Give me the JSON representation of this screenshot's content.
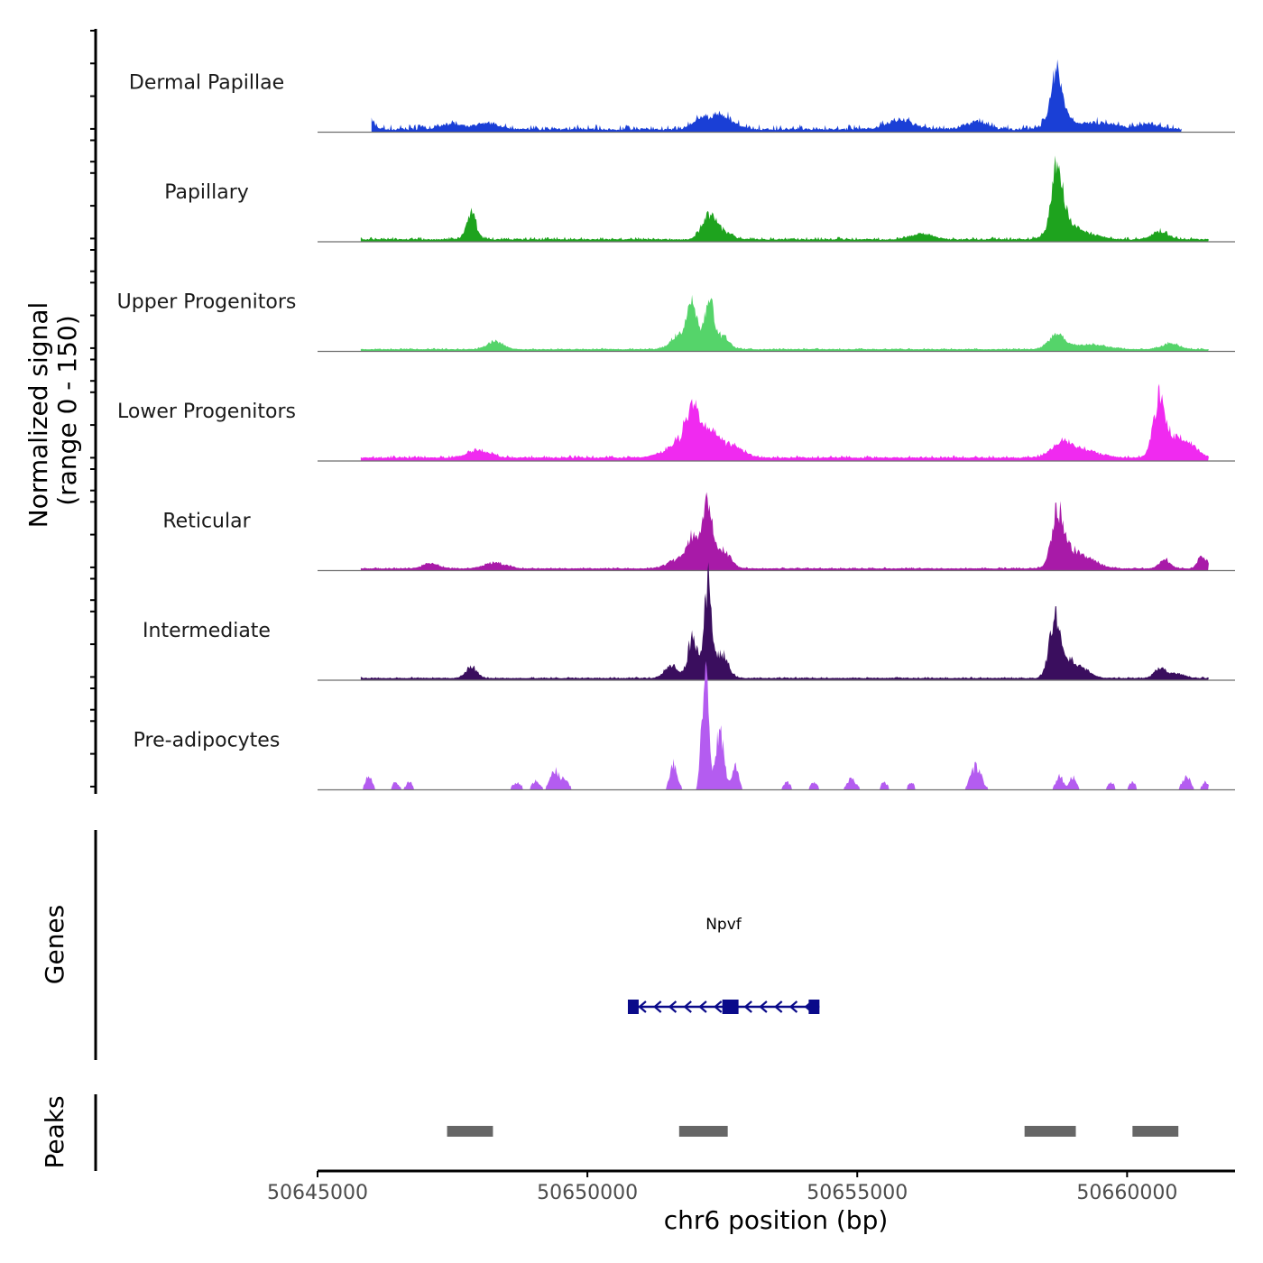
{
  "chart_data": {
    "type": "area",
    "title": "",
    "ylabel": "Normalized signal",
    "ylabel_range": "(range 0 - 150)",
    "ylim": [
      0,
      150
    ],
    "xlabel": "chr6 position (bp)",
    "xlim": [
      50645000,
      50662000
    ],
    "xticks": [
      "50645000",
      "50650000",
      "50655000",
      "50660000"
    ],
    "genes_label": "Genes",
    "peaks_label": "Peaks",
    "baseline_color": "#6e6e6e",
    "series": [
      {
        "name": "Dermal Papillae",
        "color": "#1a3fd6",
        "x_start": 50646000,
        "x_end": 50661000,
        "background": [
          2,
          6
        ],
        "peaks": [
          [
            50645950,
            100,
            9
          ],
          [
            50647500,
            200,
            6
          ],
          [
            50648150,
            200,
            7
          ],
          [
            50652500,
            200,
            14
          ],
          [
            50652100,
            150,
            10
          ],
          [
            50655800,
            250,
            10
          ],
          [
            50657200,
            200,
            8
          ],
          [
            50658700,
            90,
            45
          ],
          [
            50658750,
            200,
            18
          ],
          [
            50659500,
            300,
            7
          ],
          [
            50660400,
            200,
            6
          ]
        ]
      },
      {
        "name": "Papillary",
        "color": "#1ea31e",
        "x_start": 50645800,
        "x_end": 50661500,
        "background": [
          2,
          4
        ],
        "peaks": [
          [
            50647850,
            90,
            26
          ],
          [
            50652250,
            130,
            22
          ],
          [
            50652450,
            200,
            8
          ],
          [
            50658700,
            90,
            60
          ],
          [
            50658800,
            200,
            24
          ],
          [
            50659300,
            200,
            6
          ],
          [
            50660600,
            150,
            8
          ],
          [
            50656200,
            200,
            6
          ]
        ]
      },
      {
        "name": "Upper Progenitors",
        "color": "#55d46a",
        "x_start": 50645800,
        "x_end": 50661500,
        "background": [
          2,
          3
        ],
        "peaks": [
          [
            50648300,
            150,
            8
          ],
          [
            50651700,
            150,
            16
          ],
          [
            50651950,
            90,
            45
          ],
          [
            50652250,
            80,
            55
          ],
          [
            50652500,
            120,
            14
          ],
          [
            50658700,
            150,
            15
          ],
          [
            50659300,
            300,
            5
          ],
          [
            50660800,
            150,
            6
          ]
        ]
      },
      {
        "name": "Lower Progenitors",
        "color": "#f02af0",
        "x_start": 50645800,
        "x_end": 50661500,
        "background": [
          3,
          5
        ],
        "peaks": [
          [
            50648000,
            200,
            8
          ],
          [
            50651800,
            300,
            18
          ],
          [
            50651950,
            120,
            36
          ],
          [
            50652300,
            160,
            24
          ],
          [
            50652700,
            200,
            12
          ],
          [
            50658800,
            200,
            14
          ],
          [
            50659200,
            300,
            7
          ],
          [
            50660600,
            110,
            62
          ],
          [
            50660900,
            160,
            18
          ],
          [
            50661200,
            150,
            10
          ]
        ]
      },
      {
        "name": "Reticular",
        "color": "#a81aa8",
        "x_start": 50645800,
        "x_end": 50661500,
        "background": [
          2,
          3
        ],
        "peaks": [
          [
            50647100,
            150,
            5
          ],
          [
            50648300,
            200,
            6
          ],
          [
            50651700,
            200,
            10
          ],
          [
            50651950,
            100,
            30
          ],
          [
            50652220,
            90,
            64
          ],
          [
            50652500,
            140,
            20
          ],
          [
            50658700,
            100,
            50
          ],
          [
            50658900,
            200,
            20
          ],
          [
            50659300,
            200,
            8
          ],
          [
            50660700,
            100,
            10
          ],
          [
            50661400,
            80,
            14
          ]
        ]
      },
      {
        "name": "Intermediate",
        "color": "#3a0e5e",
        "x_start": 50645800,
        "x_end": 50661500,
        "background": [
          2,
          3
        ],
        "peaks": [
          [
            50647850,
            100,
            12
          ],
          [
            50651550,
            120,
            14
          ],
          [
            50651950,
            90,
            42
          ],
          [
            50652230,
            70,
            100
          ],
          [
            50652500,
            110,
            26
          ],
          [
            50658650,
            100,
            60
          ],
          [
            50658900,
            150,
            18
          ],
          [
            50659200,
            150,
            8
          ],
          [
            50660600,
            100,
            10
          ],
          [
            50660900,
            150,
            5
          ]
        ]
      },
      {
        "name": "Pre-adipocytes",
        "color": "#b45cf0",
        "x_start": 50645800,
        "x_end": 50661500,
        "background": [
          0,
          0
        ],
        "peaks": [
          [
            50645950,
            70,
            14
          ],
          [
            50646450,
            60,
            8
          ],
          [
            50646700,
            60,
            8
          ],
          [
            50648700,
            80,
            8
          ],
          [
            50649050,
            70,
            10
          ],
          [
            50649400,
            90,
            20
          ],
          [
            50649600,
            60,
            10
          ],
          [
            50651600,
            70,
            28
          ],
          [
            50652180,
            60,
            130
          ],
          [
            50652450,
            80,
            62
          ],
          [
            50652750,
            60,
            26
          ],
          [
            50653700,
            60,
            8
          ],
          [
            50654200,
            60,
            8
          ],
          [
            50654900,
            80,
            12
          ],
          [
            50655500,
            60,
            8
          ],
          [
            50656000,
            60,
            8
          ],
          [
            50657200,
            100,
            24
          ],
          [
            50658750,
            70,
            14
          ],
          [
            50659000,
            60,
            14
          ],
          [
            50659700,
            60,
            8
          ],
          [
            50660100,
            60,
            8
          ],
          [
            50661100,
            80,
            14
          ],
          [
            50661450,
            60,
            8
          ]
        ]
      }
    ],
    "gene_track": {
      "name": "Npvf",
      "color": "#0a0a8a",
      "strand": "-",
      "start": 50650800,
      "end": 50654300,
      "exons": [
        [
          50650750,
          50650950
        ],
        [
          50652500,
          50652800
        ],
        [
          50654100,
          50654300
        ]
      ]
    },
    "peaks_track": {
      "color": "#666666",
      "regions": [
        [
          50647400,
          50648250
        ],
        [
          50651700,
          50652600
        ],
        [
          50658100,
          50659050
        ],
        [
          50660100,
          50660950
        ]
      ]
    }
  }
}
